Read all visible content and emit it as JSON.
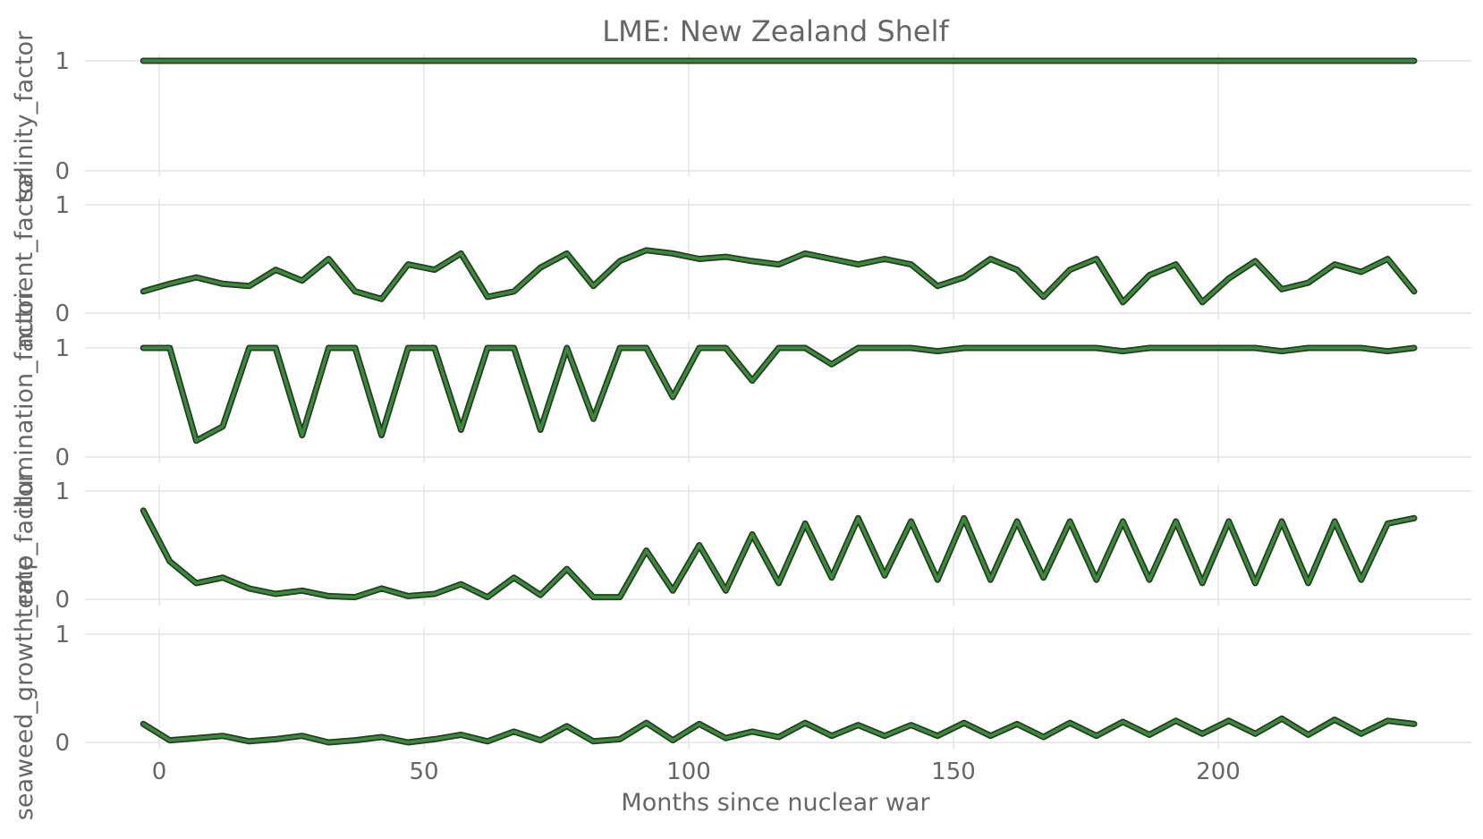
{
  "chart_data": {
    "type": "line",
    "title": "LME: New Zealand Shelf",
    "xlabel": "Months since nuclear war",
    "x_ticks": [
      0,
      50,
      100,
      150,
      200
    ],
    "xlim": [
      -15,
      245
    ],
    "x_start": -3,
    "x_end": 237,
    "line_color": "#3a8a3a",
    "panels": [
      {
        "ylabel": "salinity_factor",
        "ylim": [
          0,
          1
        ],
        "y_ticks": [
          0,
          1
        ],
        "values": [
          1.0,
          1.0,
          1.0,
          1.0,
          1.0,
          1.0,
          1.0,
          1.0,
          1.0,
          1.0,
          1.0,
          1.0,
          1.0,
          1.0,
          1.0,
          1.0,
          1.0,
          1.0,
          1.0,
          1.0,
          1.0,
          1.0,
          1.0,
          1.0,
          1.0,
          1.0,
          1.0,
          1.0,
          1.0,
          1.0,
          1.0,
          1.0,
          1.0,
          1.0,
          1.0,
          1.0,
          1.0,
          1.0,
          1.0,
          1.0,
          1.0,
          1.0,
          1.0,
          1.0,
          1.0,
          1.0,
          1.0,
          1.0,
          1.0
        ]
      },
      {
        "ylabel": "nutrient_factor",
        "ylim": [
          0,
          1
        ],
        "y_ticks": [
          0,
          1
        ],
        "values": [
          0.2,
          0.27,
          0.33,
          0.27,
          0.25,
          0.4,
          0.3,
          0.5,
          0.2,
          0.13,
          0.45,
          0.4,
          0.55,
          0.15,
          0.2,
          0.42,
          0.55,
          0.25,
          0.48,
          0.58,
          0.55,
          0.5,
          0.52,
          0.48,
          0.45,
          0.55,
          0.5,
          0.45,
          0.5,
          0.45,
          0.25,
          0.33,
          0.5,
          0.4,
          0.15,
          0.4,
          0.5,
          0.1,
          0.35,
          0.45,
          0.1,
          0.32,
          0.48,
          0.22,
          0.28,
          0.45,
          0.38,
          0.5,
          0.2
        ]
      },
      {
        "ylabel": "illumination_factor",
        "ylim": [
          0,
          1
        ],
        "y_ticks": [
          0,
          1
        ],
        "values": [
          1.0,
          1.0,
          0.15,
          0.28,
          1.0,
          1.0,
          0.2,
          1.0,
          1.0,
          0.2,
          1.0,
          1.0,
          0.25,
          1.0,
          1.0,
          0.25,
          1.0,
          0.35,
          1.0,
          1.0,
          0.55,
          1.0,
          1.0,
          0.7,
          1.0,
          1.0,
          0.85,
          1.0,
          1.0,
          1.0,
          0.97,
          1.0,
          1.0,
          1.0,
          1.0,
          1.0,
          1.0,
          0.97,
          1.0,
          1.0,
          1.0,
          1.0,
          1.0,
          0.97,
          1.0,
          1.0,
          1.0,
          0.97,
          1.0
        ]
      },
      {
        "ylabel": "temp_factor",
        "ylim": [
          0,
          1
        ],
        "y_ticks": [
          0,
          1
        ],
        "values": [
          0.82,
          0.35,
          0.15,
          0.2,
          0.1,
          0.05,
          0.08,
          0.03,
          0.02,
          0.1,
          0.03,
          0.05,
          0.14,
          0.02,
          0.2,
          0.04,
          0.28,
          0.02,
          0.02,
          0.45,
          0.08,
          0.5,
          0.08,
          0.6,
          0.15,
          0.7,
          0.2,
          0.75,
          0.22,
          0.72,
          0.18,
          0.75,
          0.18,
          0.72,
          0.2,
          0.72,
          0.18,
          0.72,
          0.18,
          0.72,
          0.15,
          0.72,
          0.15,
          0.72,
          0.15,
          0.72,
          0.18,
          0.7,
          0.75
        ]
      },
      {
        "ylabel": "seaweed_growth_rate",
        "ylim": [
          0,
          1
        ],
        "y_ticks": [
          0,
          1
        ],
        "values": [
          0.17,
          0.02,
          0.04,
          0.06,
          0.01,
          0.03,
          0.06,
          0.0,
          0.02,
          0.05,
          0.0,
          0.03,
          0.07,
          0.01,
          0.1,
          0.02,
          0.15,
          0.01,
          0.03,
          0.18,
          0.02,
          0.17,
          0.04,
          0.1,
          0.05,
          0.18,
          0.06,
          0.16,
          0.06,
          0.16,
          0.06,
          0.18,
          0.06,
          0.17,
          0.05,
          0.18,
          0.06,
          0.19,
          0.07,
          0.2,
          0.08,
          0.2,
          0.08,
          0.22,
          0.07,
          0.21,
          0.08,
          0.2,
          0.17
        ]
      }
    ]
  }
}
